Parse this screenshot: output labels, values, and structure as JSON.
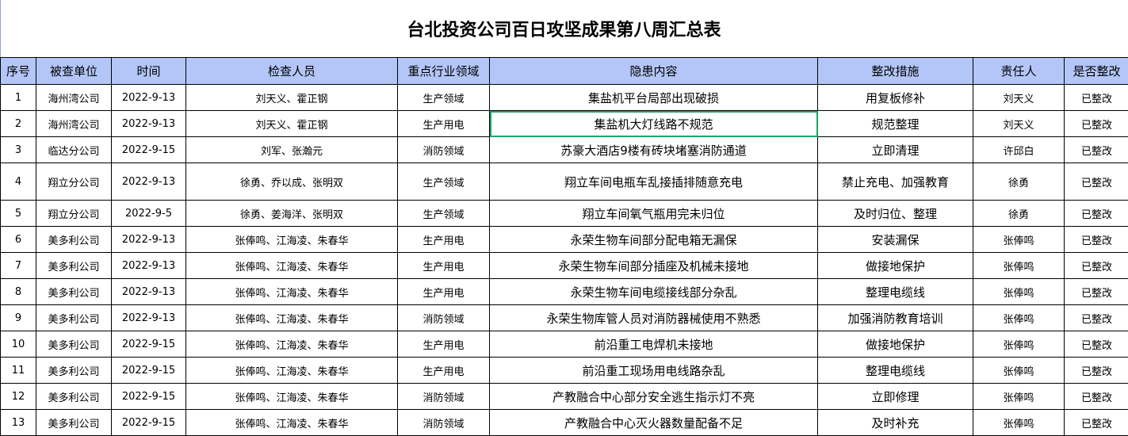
{
  "title": "台北投资公司百日攻坚成果第八周汇总表",
  "colors": {
    "header_bg": "#b4c6f8",
    "selection": "#21a366"
  },
  "columns": [
    "序号",
    "被查单位",
    "时间",
    "检查人员",
    "重点行业领域",
    "隐患内容",
    "整改措施",
    "责任人",
    "是否整改"
  ],
  "rows": [
    [
      "1",
      "海州湾公司",
      "2022-9-13",
      "刘天义、霍正钢",
      "生产领域",
      "集盐机平台局部出现破损",
      "用复板修补",
      "刘天义",
      "已整改"
    ],
    [
      "2",
      "海州湾公司",
      "2022-9-13",
      "刘天义、霍正钢",
      "生产用电",
      "集盐机大灯线路不规范",
      "规范整理",
      "刘天义",
      "已整改"
    ],
    [
      "3",
      "临达分公司",
      "2022-9-15",
      "刘军、张瀚元",
      "消防领域",
      "苏豪大酒店9楼有砖块堵塞消防通道",
      "立即清理",
      "许邱白",
      "已整改"
    ],
    [
      "4",
      "翔立分公司",
      "2022-9-13",
      "徐勇、乔以成、张明双",
      "生产领域",
      "翔立车间电瓶车乱接插排随意充电",
      "禁止充电、加强教育",
      "徐勇",
      "已整改"
    ],
    [
      "5",
      "翔立分公司",
      "2022-9-5",
      "徐勇、姜海洋、张明双",
      "生产领域",
      "翔立车间氧气瓶用完未归位",
      "及时归位、整理",
      "徐勇",
      "已整改"
    ],
    [
      "6",
      "美多利公司",
      "2022-9-13",
      "张俸鸣、江海凌、朱春华",
      "生产用电",
      "永荣生物车间部分配电箱无漏保",
      "安装漏保",
      "张俸鸣",
      "已整改"
    ],
    [
      "7",
      "美多利公司",
      "2022-9-13",
      "张俸鸣、江海凌、朱春华",
      "生产用电",
      "永荣生物车间部分插座及机械未接地",
      "做接地保护",
      "张俸鸣",
      "已整改"
    ],
    [
      "8",
      "美多利公司",
      "2022-9-13",
      "张俸鸣、江海凌、朱春华",
      "生产用电",
      "永荣生物车间电缆接线部分杂乱",
      "整理电缆线",
      "张俸鸣",
      "已整改"
    ],
    [
      "9",
      "美多利公司",
      "2022-9-13",
      "张俸鸣、江海凌、朱春华",
      "消防领域",
      "永荣生物库管人员对消防器械使用不熟悉",
      "加强消防教育培训",
      "张俸鸣",
      "已整改"
    ],
    [
      "10",
      "美多利公司",
      "2022-9-15",
      "张俸鸣、江海凌、朱春华",
      "生产用电",
      "前沿重工电焊机未接地",
      "做接地保护",
      "张俸鸣",
      "已整改"
    ],
    [
      "11",
      "美多利公司",
      "2022-9-15",
      "张俸鸣、江海凌、朱春华",
      "生产用电",
      "前沿重工现场用电线路杂乱",
      "整理电缆线",
      "张俸鸣",
      "已整改"
    ],
    [
      "12",
      "美多利公司",
      "2022-9-15",
      "张俸鸣、江海凌、朱春华",
      "消防领域",
      "产教融合中心部分安全逃生指示灯不亮",
      "立即修理",
      "张俸鸣",
      "已整改"
    ],
    [
      "13",
      "美多利公司",
      "2022-9-15",
      "张俸鸣、江海凌、朱春华",
      "消防领域",
      "产教融合中心灭火器数量配备不足",
      "及时补充",
      "张俸鸣",
      "已整改"
    ]
  ]
}
